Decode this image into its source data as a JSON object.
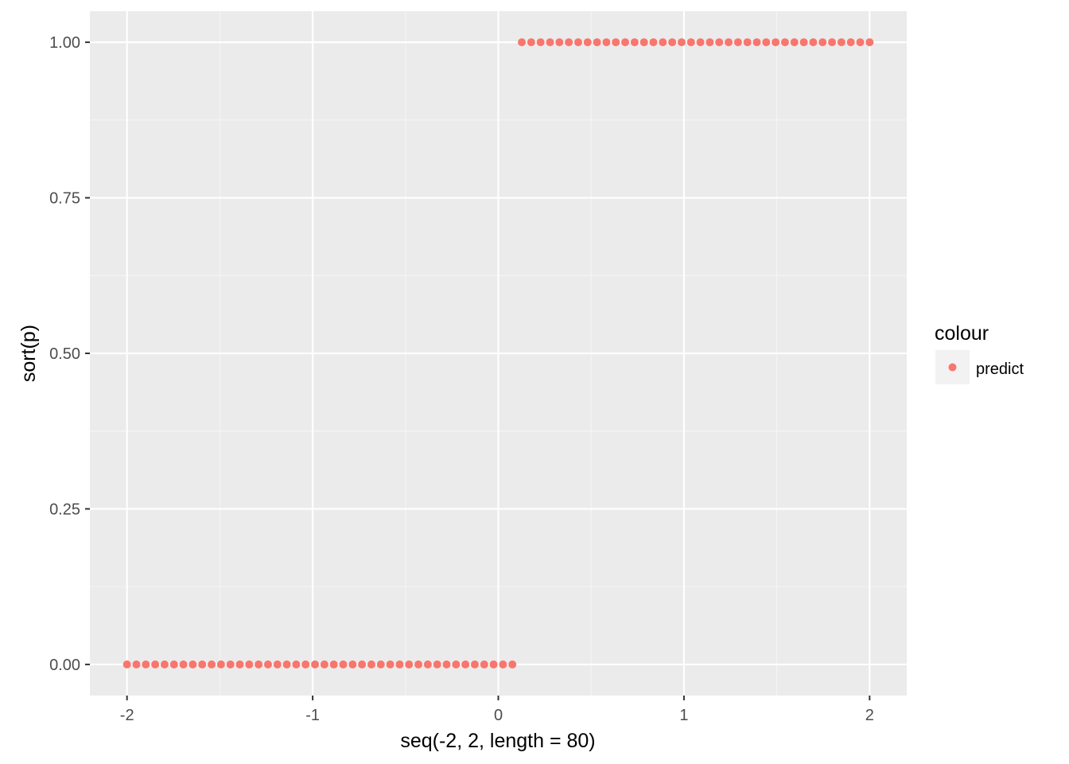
{
  "chart_data": {
    "type": "scatter",
    "xlabel": "seq(-2, 2, length = 80)",
    "ylabel": "sort(p)",
    "xlim": [
      -2.2,
      2.2
    ],
    "ylim": [
      -0.05,
      1.05
    ],
    "x_ticks": [
      -2,
      -1,
      0,
      1,
      2
    ],
    "x_tick_labels": [
      "-2",
      "-1",
      "0",
      "1",
      "2"
    ],
    "y_ticks": [
      0,
      0.25,
      0.5,
      0.75,
      1
    ],
    "y_tick_labels": [
      "0.00",
      "0.25",
      "0.50",
      "0.75",
      "1.00"
    ],
    "grid": true,
    "legend": {
      "title": "colour",
      "position": "right"
    },
    "series": [
      {
        "name": "predict",
        "color": "#F8766D",
        "x": [
          -2,
          -1.9494,
          -1.8987,
          -1.8481,
          -1.7975,
          -1.7468,
          -1.6962,
          -1.6456,
          -1.5949,
          -1.5443,
          -1.4937,
          -1.443,
          -1.3924,
          -1.3418,
          -1.2911,
          -1.2405,
          -1.1899,
          -1.1392,
          -1.0886,
          -1.038,
          -0.9873,
          -0.9367,
          -0.8861,
          -0.8354,
          -0.7848,
          -0.7342,
          -0.6835,
          -0.6329,
          -0.5823,
          -0.5316,
          -0.481,
          -0.4304,
          -0.3797,
          -0.3291,
          -0.2785,
          -0.2278,
          -0.1772,
          -0.1266,
          -0.0759,
          -0.0253,
          0.0253,
          0.0759,
          0.1266,
          0.1772,
          0.2278,
          0.2785,
          0.3291,
          0.3797,
          0.4304,
          0.481,
          0.5316,
          0.5823,
          0.6329,
          0.6835,
          0.7342,
          0.7848,
          0.8354,
          0.8861,
          0.9367,
          0.9873,
          1.038,
          1.0886,
          1.1392,
          1.1899,
          1.2405,
          1.2911,
          1.3418,
          1.3924,
          1.443,
          1.4937,
          1.5443,
          1.5949,
          1.6456,
          1.6962,
          1.7468,
          1.7975,
          1.8481,
          1.8987,
          1.9494,
          2
        ],
        "y": [
          0,
          0,
          0,
          0,
          0,
          0,
          0,
          0,
          0,
          0,
          0,
          0,
          0,
          0,
          0,
          0,
          0,
          0,
          0,
          0,
          0,
          0,
          0,
          0,
          0,
          0,
          0,
          0,
          0,
          0,
          0,
          0,
          0,
          0,
          0,
          0,
          0,
          0,
          0,
          0,
          0,
          0,
          1,
          1,
          1,
          1,
          1,
          1,
          1,
          1,
          1,
          1,
          1,
          1,
          1,
          1,
          1,
          1,
          1,
          1,
          1,
          1,
          1,
          1,
          1,
          1,
          1,
          1,
          1,
          1,
          1,
          1,
          1,
          1,
          1,
          1,
          1,
          1,
          1,
          1
        ]
      }
    ]
  }
}
